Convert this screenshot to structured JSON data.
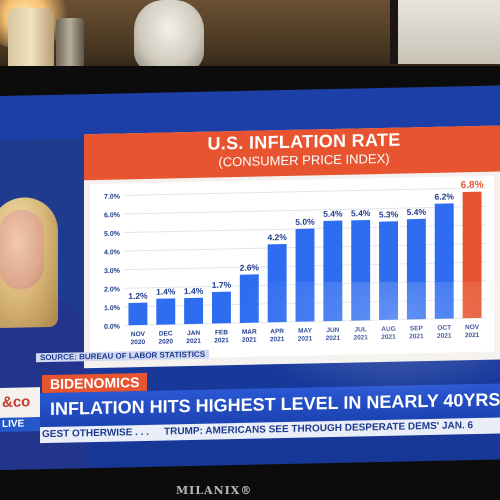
{
  "tv": {
    "brand": "MILANIX®"
  },
  "broadcast": {
    "segment_tag": "BIDENOMICS",
    "network_logo": "&co",
    "live_label": "LIVE",
    "headline": "INFLATION HITS HIGHEST LEVEL IN NEARLY 40YRS",
    "ticker_left": "GEST OTHERWISE . . .",
    "ticker_right": "TRUMP: AMERICANS SEE THROUGH DESPERATE DEMS' JAN. 6",
    "source": "SOURCE: BUREAU OF LABOR STATISTICS"
  },
  "colors": {
    "header_orange": "#e7542f",
    "bar_blue": "#2f6df0",
    "bar_highlight": "#e7542f",
    "channel_blue": "#1f3b8e"
  },
  "chart_data": {
    "type": "bar",
    "title": "U.S. INFLATION RATE",
    "subtitle": "(CONSUMER PRICE INDEX)",
    "categories": [
      [
        "NOV",
        "2020"
      ],
      [
        "DEC",
        "2020"
      ],
      [
        "JAN",
        "2021"
      ],
      [
        "FEB",
        "2021"
      ],
      [
        "MAR",
        "2021"
      ],
      [
        "APR",
        "2021"
      ],
      [
        "MAY",
        "2021"
      ],
      [
        "JUN",
        "2021"
      ],
      [
        "JUL",
        "2021"
      ],
      [
        "AUG",
        "2021"
      ],
      [
        "SEP",
        "2021"
      ],
      [
        "OCT",
        "2021"
      ],
      [
        "NOV",
        "2021"
      ]
    ],
    "values": [
      1.2,
      1.4,
      1.4,
      1.7,
      2.6,
      4.2,
      5.0,
      5.4,
      5.4,
      5.3,
      5.4,
      6.2,
      6.8
    ],
    "labels": [
      "1.2%",
      "1.4%",
      "1.4%",
      "1.7%",
      "2.6%",
      "4.2%",
      "5.0%",
      "5.4%",
      "5.4%",
      "5.3%",
      "5.4%",
      "6.2%",
      "6.8%"
    ],
    "highlight_index": 12,
    "yticks": [
      "0.0%",
      "1.0%",
      "2.0%",
      "3.0%",
      "4.0%",
      "5.0%",
      "6.0%",
      "7.0%"
    ],
    "ylim": [
      0,
      7
    ],
    "grid": true
  }
}
